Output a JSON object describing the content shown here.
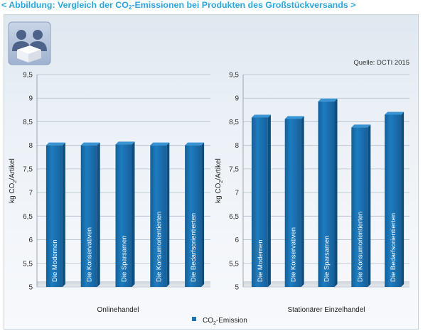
{
  "header": {
    "title_prefix": "< Abbildung: Vergleich der CO",
    "title_sub": "2",
    "title_suffix": "-Emissionen bei Produkten des Großstückversands >"
  },
  "source": "Quelle: DCTI 2015",
  "icon": "people-with-box-icon",
  "colors": {
    "bar": "#1b75b8",
    "header": "#2aa6df"
  },
  "legend": {
    "prefix": "CO",
    "sub": "2",
    "suffix": "-Emission"
  },
  "chart_data": [
    {
      "type": "bar",
      "categories": [
        "Die Modernen",
        "Die Konservativen",
        "Die Sparsamen",
        "Die Konsumorientierten",
        "Die Bedarfsorientierten"
      ],
      "series": [
        {
          "name": "CO2-Emission",
          "values": [
            8.0,
            8.0,
            8.02,
            8.0,
            8.0
          ]
        }
      ],
      "xlabel": "Onlinehandel",
      "ylabel": {
        "prefix": "kg CO",
        "sub": "2",
        "suffix": "/Artikel"
      },
      "ylim": [
        5,
        9.5
      ],
      "yticks": [
        "5",
        "5,5",
        "6",
        "6,5",
        "7",
        "7,5",
        "8",
        "8,5",
        "9",
        "9,5"
      ],
      "grid": true
    },
    {
      "type": "bar",
      "categories": [
        "Die Modernen",
        "Die Konservativen",
        "Die Sparsamen",
        "Die Konsumorientierten",
        "Die Bedarfsorientierten"
      ],
      "series": [
        {
          "name": "CO2-Emission",
          "values": [
            8.59,
            8.56,
            8.93,
            8.38,
            8.65
          ]
        }
      ],
      "xlabel": "Stationärer Einzelhandel",
      "ylabel": {
        "prefix": "kg CO",
        "sub": "2",
        "suffix": "/Artikel"
      },
      "ylim": [
        5,
        9.5
      ],
      "yticks": [
        "5",
        "5,5",
        "6",
        "6,5",
        "7",
        "7,5",
        "8",
        "8,5",
        "9",
        "9,5"
      ],
      "grid": true
    }
  ]
}
